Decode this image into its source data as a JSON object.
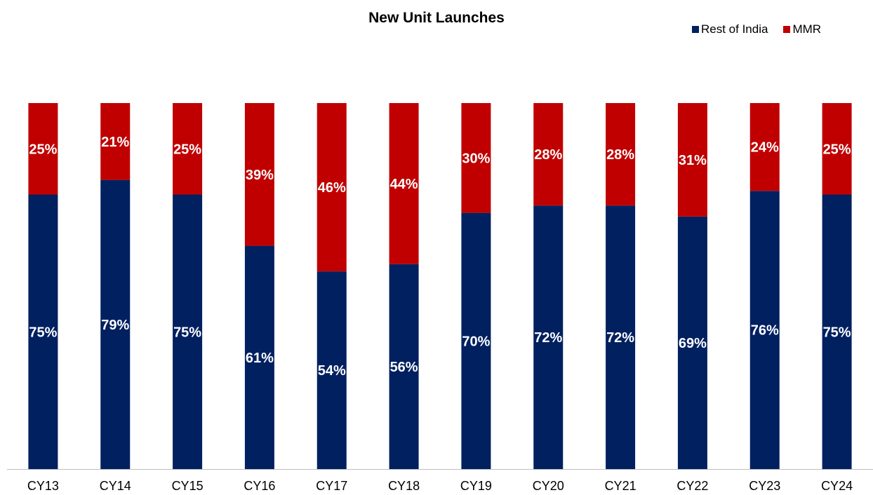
{
  "chart_data": {
    "type": "bar",
    "stacked": true,
    "title": "New Unit Launches",
    "xlabel": "",
    "ylabel": "",
    "ylim": [
      0,
      100
    ],
    "grid": false,
    "legend_position": "top-right",
    "categories": [
      "CY13",
      "CY14",
      "CY15",
      "CY16",
      "CY17",
      "CY18",
      "CY19",
      "CY20",
      "CY21",
      "CY22",
      "CY23",
      "CY24"
    ],
    "series": [
      {
        "name": "Rest of India",
        "color": "#002060",
        "values": [
          75,
          79,
          75,
          61,
          54,
          56,
          70,
          72,
          72,
          69,
          76,
          75
        ],
        "labels": [
          "75%",
          "79%",
          "75%",
          "61%",
          "54%",
          "56%",
          "70%",
          "72%",
          "72%",
          "69%",
          "76%",
          "75%"
        ]
      },
      {
        "name": "MMR",
        "color": "#C00000",
        "values": [
          25,
          21,
          25,
          39,
          46,
          44,
          30,
          28,
          28,
          31,
          24,
          25
        ],
        "labels": [
          "25%",
          "21%",
          "25%",
          "39%",
          "46%",
          "44%",
          "30%",
          "28%",
          "28%",
          "31%",
          "24%",
          "25%"
        ]
      }
    ]
  }
}
